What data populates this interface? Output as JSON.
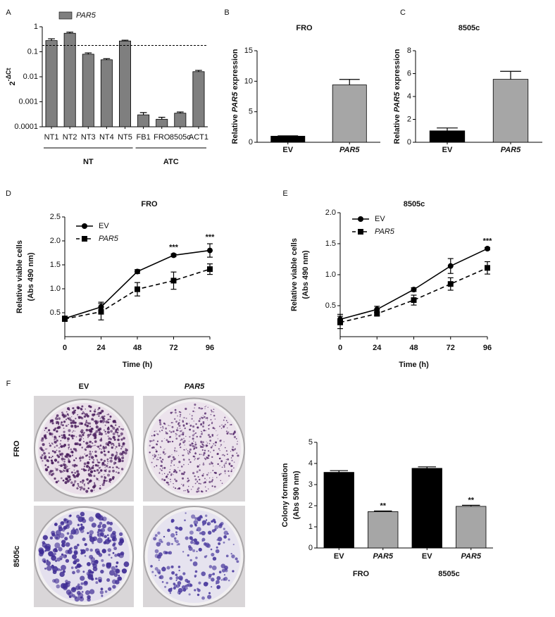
{
  "italic_terms": [
    "PAR5"
  ],
  "chart_data": [
    {
      "panel": "A",
      "type": "bar",
      "log_scale": true,
      "ylabel": {
        "base": "2",
        "exponent": "-ΔCt"
      },
      "categories": [
        "NT1",
        "NT2",
        "NT3",
        "NT4",
        "NT5",
        "FB1",
        "FRO",
        "8505c",
        "ACT1"
      ],
      "category_groups": [
        "NT",
        "NT",
        "NT",
        "NT",
        "NT",
        "ATC",
        "ATC",
        "ATC",
        "ATC"
      ],
      "series": [
        {
          "name": "PAR5",
          "color": "#7f7f7f",
          "values": [
            0.28,
            0.55,
            0.08,
            0.048,
            0.27,
            0.0003,
            0.0002,
            0.00035,
            0.016
          ],
          "errors": [
            0.05,
            0.06,
            0.01,
            0.005,
            0.02,
            7e-05,
            4e-05,
            4e-05,
            0.002
          ]
        }
      ],
      "reference_line": 0.18,
      "ylim": [
        0.0001,
        1
      ],
      "yticks": [
        0.0001,
        0.001,
        0.01,
        0.1,
        1
      ],
      "legend": "top"
    },
    {
      "panel": "B",
      "type": "bar",
      "title": "FRO",
      "ylabel": [
        "Relative PAR5 expression"
      ],
      "categories": [
        "EV",
        "PAR5"
      ],
      "values": [
        1.0,
        9.4
      ],
      "errors": [
        0.05,
        0.9
      ],
      "colors": [
        "#000000",
        "#a6a6a6"
      ],
      "ylim": [
        0,
        15
      ],
      "yticks": [
        0,
        5,
        10,
        15
      ]
    },
    {
      "panel": "C",
      "type": "bar",
      "title": "8505c",
      "ylabel": [
        "Relative PAR5 expression"
      ],
      "categories": [
        "EV",
        "PAR5"
      ],
      "values": [
        1.0,
        5.5
      ],
      "errors": [
        0.25,
        0.7
      ],
      "colors": [
        "#000000",
        "#a6a6a6"
      ],
      "ylim": [
        0,
        8
      ],
      "yticks": [
        0,
        2,
        4,
        6,
        8
      ]
    },
    {
      "panel": "D",
      "type": "line",
      "title": "FRO",
      "xlabel": "Time (h)",
      "ylabel": [
        "Relative viable cells",
        "(Abs 490 nm)"
      ],
      "x": [
        0,
        24,
        48,
        72,
        96
      ],
      "series": [
        {
          "name": "EV",
          "color": "#000000",
          "marker": "circle",
          "dashed": false,
          "values": [
            0.38,
            0.62,
            1.36,
            1.7,
            1.8
          ],
          "errors": [
            0.05,
            0.1,
            0.04,
            0.03,
            0.14
          ]
        },
        {
          "name": "PAR5",
          "color": "#000000",
          "marker": "square",
          "dashed": true,
          "values": [
            0.37,
            0.52,
            0.99,
            1.17,
            1.41
          ],
          "errors": [
            0.05,
            0.17,
            0.14,
            0.18,
            0.11
          ]
        }
      ],
      "annotations": [
        {
          "x": 72,
          "text": "***"
        },
        {
          "x": 96,
          "text": "***"
        }
      ],
      "xlim": [
        0,
        96
      ],
      "xticks": [
        0,
        24,
        48,
        72,
        96
      ],
      "ylim": [
        0,
        2.5
      ],
      "yticks": [
        0.5,
        {
          "value": 1,
          "label": "1.0"
        },
        1.5,
        {
          "value": 2,
          "label": "2.0"
        },
        2.5
      ],
      "legend": "upper left"
    },
    {
      "panel": "E",
      "type": "line",
      "title": "8505c",
      "xlabel": "Time (h)",
      "ylabel": [
        "Relative viable cells",
        "(Abs 490 nm)"
      ],
      "x": [
        0,
        24,
        48,
        72,
        96
      ],
      "series": [
        {
          "name": "EV",
          "color": "#000000",
          "marker": "circle",
          "dashed": false,
          "values": [
            0.28,
            0.44,
            0.76,
            1.14,
            1.42
          ],
          "errors": [
            0.08,
            0.05,
            0.03,
            0.12,
            0.02
          ]
        },
        {
          "name": "PAR5",
          "color": "#000000",
          "marker": "square",
          "dashed": true,
          "values": [
            0.23,
            0.37,
            0.59,
            0.85,
            1.11
          ],
          "errors": [
            0.1,
            0.03,
            0.08,
            0.1,
            0.1
          ]
        }
      ],
      "annotations": [
        {
          "x": 96,
          "text": "***"
        }
      ],
      "xlim": [
        0,
        96
      ],
      "xticks": [
        0,
        24,
        48,
        72,
        96
      ],
      "ylim": [
        0,
        2
      ],
      "yticks": [
        0.5,
        {
          "value": 1,
          "label": "1.0"
        },
        1.5,
        {
          "value": 2,
          "label": "2.0"
        }
      ],
      "legend": "upper left"
    },
    {
      "type": "bar",
      "ylabel": [
        "Colony formation",
        "(Abs 590 nm)"
      ],
      "categories": [
        "EV",
        "PAR5",
        "EV",
        "PAR5"
      ],
      "category_groups": [
        "FRO",
        "FRO",
        "8505c",
        "8505c"
      ],
      "values": [
        3.58,
        1.72,
        3.77,
        1.97
      ],
      "errors": [
        0.08,
        0.03,
        0.07,
        0.05
      ],
      "value_annotations": [
        null,
        "**",
        null,
        "**"
      ],
      "colors": [
        "#000000",
        "#a6a6a6",
        "#000000",
        "#a6a6a6"
      ],
      "ylim": [
        0,
        5
      ],
      "yticks": [
        0,
        1,
        2,
        3,
        4,
        5
      ]
    }
  ],
  "colony_images": {
    "panel": "F",
    "columns": [
      "EV",
      "PAR5"
    ],
    "rows": [
      "FRO",
      "8505c"
    ]
  }
}
